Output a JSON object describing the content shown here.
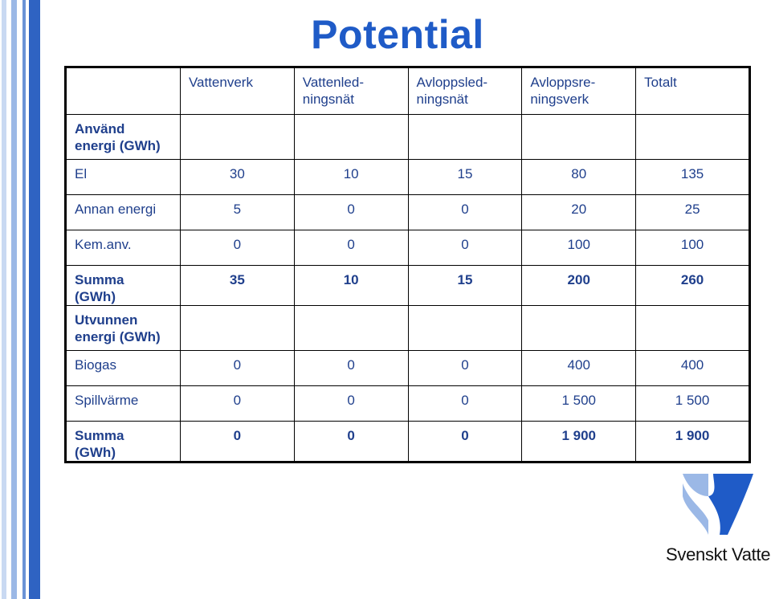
{
  "title": "Potential",
  "table": {
    "header": [
      "",
      "Vattenverk",
      "Vattenled-\nningsnät",
      "Avloppsled-\nningsnät",
      "Avloppsre-\nningsverk",
      "Totalt"
    ],
    "rows": [
      {
        "cells": [
          "Använd\nenergi (GWh)",
          "",
          "",
          "",
          "",
          ""
        ],
        "bold": true,
        "section": true
      },
      {
        "cells": [
          "El",
          "30",
          "10",
          "15",
          "80",
          "135"
        ],
        "bold": false
      },
      {
        "cells": [
          "Annan energi",
          "5",
          "0",
          "0",
          "20",
          "25"
        ],
        "bold": false
      },
      {
        "cells": [
          "Kem.anv.",
          "0",
          "0",
          "0",
          "100",
          "100"
        ],
        "bold": false
      },
      {
        "cells": [
          "Summa\n(GWh)",
          "35",
          "10",
          "15",
          "200",
          "260"
        ],
        "bold": true
      },
      {
        "cells": [
          "Utvunnen\nenergi (GWh)",
          "",
          "",
          "",
          "",
          ""
        ],
        "bold": true,
        "section": true
      },
      {
        "cells": [
          "Biogas",
          "0",
          "0",
          "0",
          "400",
          "400"
        ],
        "bold": false
      },
      {
        "cells": [
          "Spillvärme",
          "0",
          "0",
          "0",
          "1 500",
          "1 500"
        ],
        "bold": false
      },
      {
        "cells": [
          "Summa\n(GWh)",
          "0",
          "0",
          "0",
          "1 900",
          "1 900"
        ],
        "bold": true
      }
    ]
  },
  "brand": {
    "name": "Svenskt Vatten",
    "logo_icon": "svenskt-vatten-logo-icon",
    "colors": {
      "primary": "#1f5bc7",
      "light": "#9bb8e6"
    }
  },
  "colors": {
    "title": "#1f5bc7",
    "text": "#1f3f8c",
    "border": "#000000"
  }
}
